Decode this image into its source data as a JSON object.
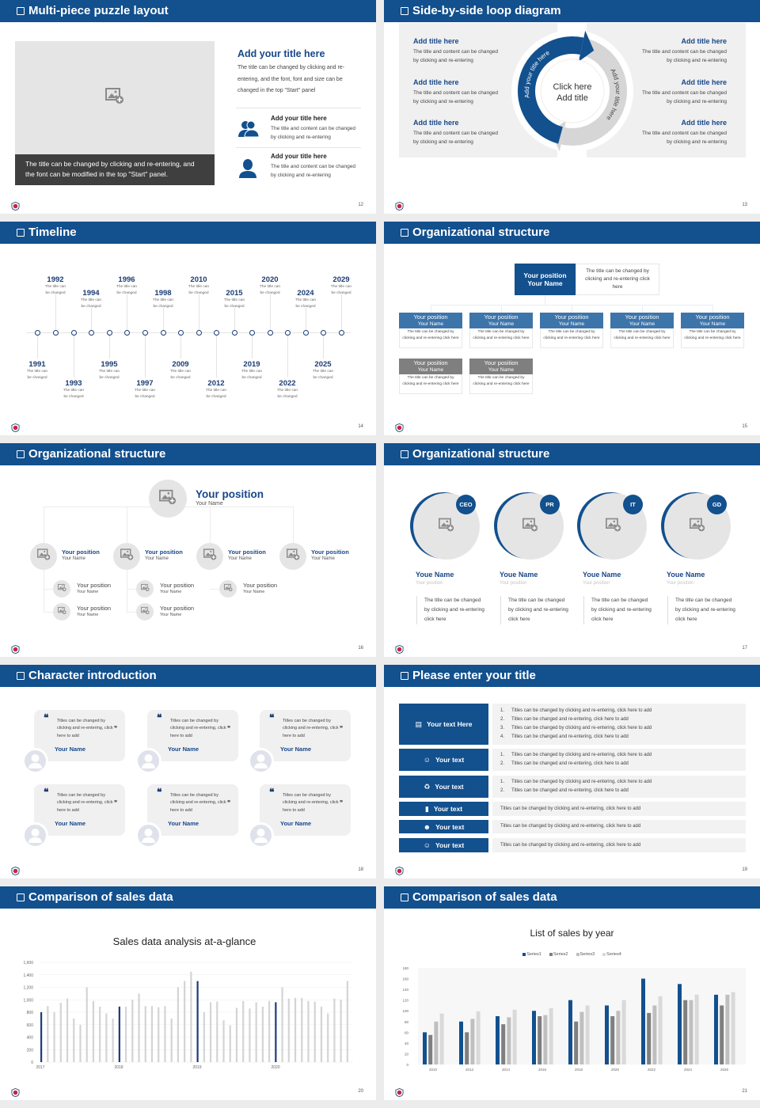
{
  "colors": {
    "primary": "#12508e",
    "navy_text": "#1b3c73",
    "placeholder": "#e6e5e5",
    "caption_bg": "#3f3f3f",
    "org_row_header": "#3d75ab",
    "org_gray_header": "#7f7f7f",
    "bar_gray": "#d4d4d4",
    "row_bg": "#f2f2f2"
  },
  "slides": {
    "s12": {
      "title": "Multi-piece puzzle layout",
      "page": "12",
      "caption": "The title can be changed by clicking and re-entering, and the font can be modified in the top \"Start\" panel.",
      "heading": "Add your title here",
      "body": "The title can be changed by clicking and re-entering, and the font, font and size can be changed in the top \"Start\" panel",
      "items": [
        {
          "icon": "users-icon",
          "title": "Add your title here",
          "text": "The title and content can be changed by clicking and re-entering"
        },
        {
          "icon": "user-icon",
          "title": "Add your title here",
          "text": "The title and content can be changed by clicking and re-entering"
        }
      ]
    },
    "s13": {
      "title": "Side-by-side loop diagram",
      "page": "13",
      "center": [
        "Click here",
        "Add title"
      ],
      "arc_left": "Add your title here",
      "arc_right": "Add your title here",
      "left": [
        {
          "title": "Add title here",
          "text": "The title and content can be changed by clicking and re-entering"
        },
        {
          "title": "Add title here",
          "text": "The title and content can be changed by clicking and re-entering"
        },
        {
          "title": "Add title here",
          "text": "The title and content can be changed by clicking and re-entering"
        }
      ],
      "right": [
        {
          "title": "Add title here",
          "text": "The title and content can be changed by clicking and re-entering"
        },
        {
          "title": "Add title here",
          "text": "The title and content can be changed by clicking and re-entering"
        },
        {
          "title": "Add title here",
          "text": "The title and content can be changed by clicking and re-entering"
        }
      ]
    },
    "s14": {
      "title": "Timeline",
      "page": "14",
      "events": [
        {
          "year": "1991",
          "text": "The title can be changed"
        },
        {
          "year": "1992",
          "text": "The title can be changed"
        },
        {
          "year": "1993",
          "text": "The title can be changed"
        },
        {
          "year": "1994",
          "text": "The title can be changed"
        },
        {
          "year": "1995",
          "text": "The title can be changed"
        },
        {
          "year": "1996",
          "text": "The title can be changed"
        },
        {
          "year": "1997",
          "text": "The title can be changed"
        },
        {
          "year": "1998",
          "text": "The title can be changed"
        },
        {
          "year": "2009",
          "text": "The title can be changed"
        },
        {
          "year": "2010",
          "text": "The title can be changed"
        },
        {
          "year": "2012",
          "text": "The title can be changed"
        },
        {
          "year": "2015",
          "text": "The title can be changed"
        },
        {
          "year": "2019",
          "text": "The title can be changed"
        },
        {
          "year": "2020",
          "text": "The title can be changed"
        },
        {
          "year": "2022",
          "text": "The title can be changed"
        },
        {
          "year": "2024",
          "text": "The title can be changed"
        },
        {
          "year": "2025",
          "text": "The title can be changed"
        },
        {
          "year": "2029",
          "text": "The title can be changed"
        }
      ]
    },
    "s15": {
      "title": "Organizational structure",
      "page": "15",
      "top": {
        "position": "Your position",
        "name": "Your Name",
        "text": "The title can be changed by clicking and re-entering click here"
      },
      "row1": [
        {
          "position": "Your position",
          "name": "Your Name",
          "text": "The title can be changed by clicking and re-entering click here"
        },
        {
          "position": "Your position",
          "name": "Your Name",
          "text": "The title can be changed by clicking and re-entering click here"
        },
        {
          "position": "Your position",
          "name": "Your Name",
          "text": "The title can be changed by clicking and re-entering click here"
        },
        {
          "position": "Your position",
          "name": "Your Name",
          "text": "The title can be changed by clicking and re-entering click here"
        },
        {
          "position": "Your position",
          "name": "Your Name",
          "text": "The title can be changed by clicking and re-entering click here"
        }
      ],
      "row2": [
        {
          "position": "Your position",
          "name": "Your Name",
          "text": "The title can be changed by clicking and re-entering click here"
        },
        {
          "position": "Your position",
          "name": "Your Name",
          "text": "The title can be changed by clicking and re-entering click here"
        }
      ]
    },
    "s16": {
      "title": "Organizational structure",
      "page": "16",
      "top": {
        "position": "Your position",
        "name": "Your Name"
      },
      "groups": [
        {
          "position": "Your position",
          "name": "Your Name",
          "subs": [
            {
              "position": "Your position",
              "name": "Your Name"
            },
            {
              "position": "Your position",
              "name": "Your Name"
            }
          ]
        },
        {
          "position": "Your position",
          "name": "Your Name",
          "subs": [
            {
              "position": "Your position",
              "name": "Your Name"
            },
            {
              "position": "Your position",
              "name": "Your Name"
            }
          ]
        },
        {
          "position": "Your position",
          "name": "Your Name",
          "subs": [
            {
              "position": "Your position",
              "name": "Your Name"
            }
          ]
        },
        {
          "position": "Your position",
          "name": "Your Name",
          "subs": []
        }
      ]
    },
    "s17": {
      "title": "Organizational structure",
      "page": "17",
      "people": [
        {
          "badge": "CEO",
          "name": "Youe Name",
          "position": "Your position",
          "text": "The title can be changed by clicking and re-entering click here"
        },
        {
          "badge": "PR",
          "name": "Youe Name",
          "position": "Your position",
          "text": "The title can be changed by clicking and re-entering click here"
        },
        {
          "badge": "IT",
          "name": "Youe Name",
          "position": "Your position",
          "text": "The title can be changed by clicking and re-entering click here"
        },
        {
          "badge": "GD",
          "name": "Youe Name",
          "position": "Your position",
          "text": "The title can be changed by clicking and re-entering click here"
        }
      ]
    },
    "s18": {
      "title": "Character introduction",
      "page": "18",
      "cards": [
        {
          "quote": "Titles can be changed by clicking and re-entering, click here to add",
          "name": "Your Name"
        },
        {
          "quote": "Titles can be changed by clicking and re-entering, click here to add",
          "name": "Your Name"
        },
        {
          "quote": "Titles can be changed by clicking and re-entering, click here to add",
          "name": "Your Name"
        },
        {
          "quote": "Titles can be changed by clicking and re-entering, click here to add",
          "name": "Your Name"
        },
        {
          "quote": "Titles can be changed by clicking and re-entering, click here to add",
          "name": "Your Name"
        },
        {
          "quote": "Titles can be changed by clicking and re-entering, click here to add",
          "name": "Your Name"
        }
      ]
    },
    "s19": {
      "title": "Please enter your title",
      "page": "19",
      "rows": [
        {
          "icon": "meeting-icon",
          "label": "Your text Here",
          "items": [
            "Titles can be changed by clicking and re-entering, click here to add",
            "Titles can be changed and re-entering, click here to add",
            "Titles can be changed by clicking and re-entering, click here to add",
            "Titles can be changed and re-entering, click here to add"
          ]
        },
        {
          "icon": "user-card-icon",
          "label": "Your text",
          "items": [
            "Titles can be changed by clicking and re-entering, click here to add",
            "Titles can be changed and re-entering, click here to add"
          ]
        },
        {
          "icon": "recycle-icon",
          "label": "Your text",
          "items": [
            "Titles can be changed by clicking and re-entering, click here to add",
            "Titles can be changed and re-entering, click here to add"
          ]
        },
        {
          "icon": "bar-chart-icon",
          "label": "Your text",
          "text": "Titles can be changed by clicking and re-entering, click here to add"
        },
        {
          "icon": "team-icon",
          "label": "Your text",
          "text": "Titles can be changed by clicking and re-entering, click here to add"
        },
        {
          "icon": "hand-user-icon",
          "label": "Your text",
          "text": "Titles can be changed by clicking and re-entering, click here to add"
        }
      ]
    },
    "s20": {
      "title": "Comparison of sales data",
      "page": "20"
    },
    "s21": {
      "title": "Comparison of sales data",
      "page": "21"
    }
  },
  "chart_data": [
    {
      "type": "bar",
      "title": "Sales data analysis at-a-glance",
      "ylim": [
        0,
        1600
      ],
      "yticks": [
        "0",
        "200",
        "400",
        "600",
        "800",
        "1,000",
        "1,200",
        "1,400",
        "1,600"
      ],
      "xticks": [
        "2017",
        "2018",
        "2019",
        "2020"
      ],
      "highlight_color": "#1f3a7a",
      "bar_color": "#d4d4d4",
      "grid": true,
      "values": [
        800,
        900,
        800,
        950,
        1020,
        700,
        600,
        1200,
        980,
        890,
        780,
        700,
        890,
        890,
        1000,
        1100,
        900,
        900,
        880,
        900,
        700,
        1200,
        1300,
        1450,
        1300,
        800,
        960,
        970,
        670,
        590,
        870,
        980,
        860,
        960,
        890,
        980,
        960,
        1200,
        1020,
        1030,
        1030,
        980,
        970,
        890,
        780,
        1020,
        1000,
        1300
      ]
    },
    {
      "type": "bar",
      "title": "List of sales by year",
      "ylim": [
        0,
        180
      ],
      "legend": "top",
      "yticks": [
        "0",
        "20",
        "40",
        "60",
        "80",
        "100",
        "120",
        "140",
        "160",
        "180"
      ],
      "categories": [
        "2010",
        "2012",
        "2014",
        "2016",
        "2018",
        "2020",
        "2022",
        "2024",
        "2026"
      ],
      "series": [
        {
          "name": "Series1",
          "color": "#12508e",
          "values": [
            60,
            80,
            90,
            100,
            120,
            110,
            160,
            150,
            130
          ]
        },
        {
          "name": "Series2",
          "color": "#7f7f7f",
          "values": [
            55,
            60,
            75,
            90,
            80,
            90,
            96,
            120,
            110
          ]
        },
        {
          "name": "Series3",
          "color": "#bfbfbf",
          "values": [
            80,
            85,
            88,
            92,
            98,
            100,
            110,
            120,
            130
          ]
        },
        {
          "name": "Series4",
          "color": "#d9d9d9",
          "values": [
            95,
            99,
            102,
            105,
            110,
            120,
            127,
            130,
            135
          ]
        }
      ]
    }
  ]
}
